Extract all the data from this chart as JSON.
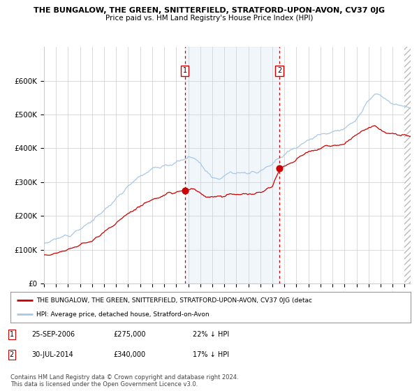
{
  "title": "THE BUNGALOW, THE GREEN, SNITTERFIELD, STRATFORD-UPON-AVON, CV37 0JG",
  "subtitle": "Price paid vs. HM Land Registry's House Price Index (HPI)",
  "hpi_color": "#a8c8e8",
  "price_color": "#cc0000",
  "background_color": "#ffffff",
  "grid_color": "#cccccc",
  "shaded_region_color": "#ddeeff",
  "ylim": [
    0,
    700000
  ],
  "yticks": [
    0,
    100000,
    200000,
    300000,
    400000,
    500000,
    600000
  ],
  "ytick_labels": [
    "£0",
    "£100K",
    "£200K",
    "£300K",
    "£400K",
    "£500K",
    "£600K"
  ],
  "sale1_date": 2006.73,
  "sale1_price": 275000,
  "sale2_date": 2014.58,
  "sale2_price": 340000,
  "legend_line1": "THE BUNGALOW, THE GREEN, SNITTERFIELD, STRATFORD-UPON-AVON, CV37 0JG (detac",
  "legend_line2": "HPI: Average price, detached house, Stratford-on-Avon",
  "table_row1_num": "1",
  "table_row1_date": "25-SEP-2006",
  "table_row1_price": "£275,000",
  "table_row1_hpi": "22% ↓ HPI",
  "table_row2_num": "2",
  "table_row2_date": "30-JUL-2014",
  "table_row2_price": "£340,000",
  "table_row2_hpi": "17% ↓ HPI",
  "footnote": "Contains HM Land Registry data © Crown copyright and database right 2024.\nThis data is licensed under the Open Government Licence v3.0.",
  "xstart": 1995.0,
  "xend": 2025.5
}
